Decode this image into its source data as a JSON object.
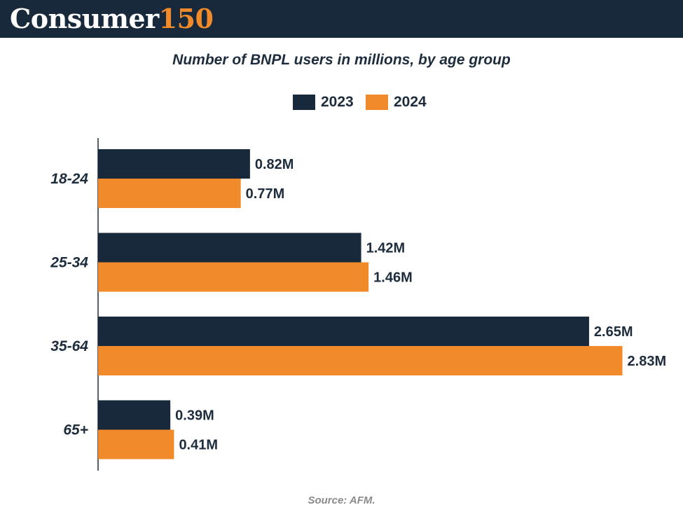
{
  "header": {
    "logo_word": "Consumer",
    "logo_number": "150"
  },
  "colors": {
    "header_bg": "#17293a",
    "series_2023": "#17293a",
    "series_2024": "#f08a2a",
    "text": "#1e2d3d"
  },
  "chart_data": {
    "type": "bar",
    "orientation": "horizontal",
    "title": "Number of BNPL users in millions, by age group",
    "categories": [
      "18-24",
      "25-34",
      "35-64",
      "65+"
    ],
    "series": [
      {
        "name": "2023",
        "values": [
          0.82,
          1.42,
          2.65,
          0.39
        ],
        "labels": [
          "0.82M",
          "1.42M",
          "2.65M",
          "0.39M"
        ]
      },
      {
        "name": "2024",
        "values": [
          0.77,
          1.46,
          2.83,
          0.41
        ],
        "labels": [
          "0.77M",
          "1.46M",
          "2.83M",
          "0.41M"
        ]
      }
    ],
    "legend_position": "top-center",
    "grid": false
  },
  "source": "Source: AFM."
}
